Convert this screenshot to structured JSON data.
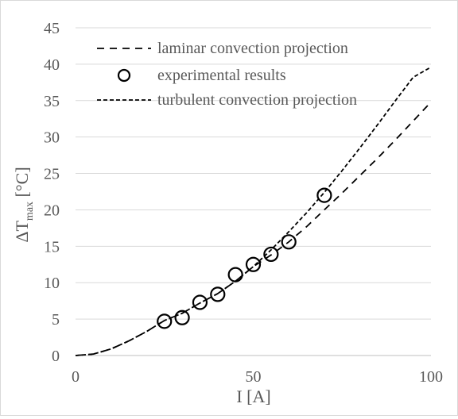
{
  "chart_data": {
    "type": "scatter",
    "title": "",
    "xlabel": "I [A]",
    "ylabel": {
      "main": "ΔT",
      "subscript": "max",
      "unit": " [°C]"
    },
    "xlim": [
      0,
      100
    ],
    "ylim": [
      0,
      45
    ],
    "xticks": [
      0,
      50,
      100
    ],
    "yticks": [
      0,
      5,
      10,
      15,
      20,
      25,
      30,
      35,
      40,
      45
    ],
    "grid": "horizontal",
    "legend_position": "top-left",
    "series": [
      {
        "name": "laminar convection projection",
        "style": "long-dash",
        "x": [
          0,
          5,
          10,
          15,
          20,
          25,
          30,
          35,
          40,
          45,
          50,
          55,
          60,
          65,
          70,
          75,
          80,
          85,
          90,
          95,
          100
        ],
        "y": [
          0,
          0.2,
          0.9,
          2.0,
          3.3,
          4.8,
          5.8,
          7.2,
          8.5,
          10.2,
          12.2,
          13.8,
          15.6,
          17.7,
          20.0,
          22.3,
          24.7,
          27.1,
          29.6,
          32.2,
          34.8
        ]
      },
      {
        "name": "experimental results",
        "style": "open-circle",
        "x": [
          25,
          30,
          35,
          40,
          45,
          50,
          55,
          60,
          70
        ],
        "y": [
          4.7,
          5.2,
          7.3,
          8.4,
          11.1,
          12.5,
          13.9,
          15.6,
          22.0
        ]
      },
      {
        "name": "turbulent convection projection",
        "style": "short-dash",
        "x": [
          0,
          5,
          10,
          15,
          20,
          25,
          30,
          35,
          40,
          45,
          50,
          55,
          60,
          65,
          70,
          75,
          80,
          85,
          90,
          95,
          100
        ],
        "y": [
          0,
          0.2,
          0.9,
          2.0,
          3.3,
          4.8,
          5.8,
          7.2,
          8.5,
          10.2,
          12.2,
          14.5,
          17.0,
          19.6,
          22.4,
          25.4,
          28.5,
          31.7,
          35.0,
          38.2,
          39.6
        ]
      }
    ]
  }
}
